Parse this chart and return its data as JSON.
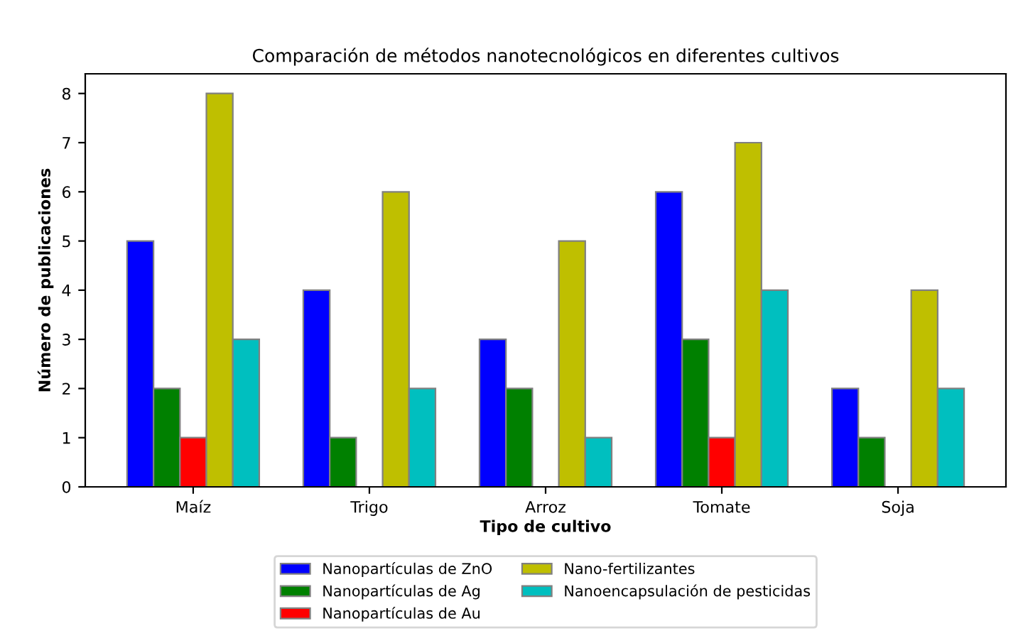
{
  "chart_data": {
    "type": "bar",
    "title": "Comparación de métodos nanotecnológicos en diferentes cultivos",
    "xlabel": "Tipo de cultivo",
    "ylabel": "Número de publicaciones",
    "categories": [
      "Maíz",
      "Trigo",
      "Arroz",
      "Tomate",
      "Soja"
    ],
    "series": [
      {
        "name": "Nanopartículas de ZnO",
        "color": "#0000ff",
        "values": [
          5,
          4,
          3,
          6,
          2
        ]
      },
      {
        "name": "Nanopartículas de Ag",
        "color": "#008000",
        "values": [
          2,
          1,
          2,
          3,
          1
        ]
      },
      {
        "name": "Nanopartículas de Au",
        "color": "#ff0000",
        "values": [
          1,
          0,
          0,
          1,
          0
        ]
      },
      {
        "name": "Nano-fertilizantes",
        "color": "#bfbf00",
        "values": [
          8,
          6,
          5,
          7,
          4
        ]
      },
      {
        "name": "Nanoencapsulación de pesticidas",
        "color": "#00bfbf",
        "values": [
          3,
          2,
          1,
          4,
          2
        ]
      }
    ],
    "ylim": [
      0,
      8.4
    ],
    "yticks": [
      0,
      1,
      2,
      3,
      4,
      5,
      6,
      7,
      8
    ],
    "grid": false,
    "legend": "bottom"
  }
}
